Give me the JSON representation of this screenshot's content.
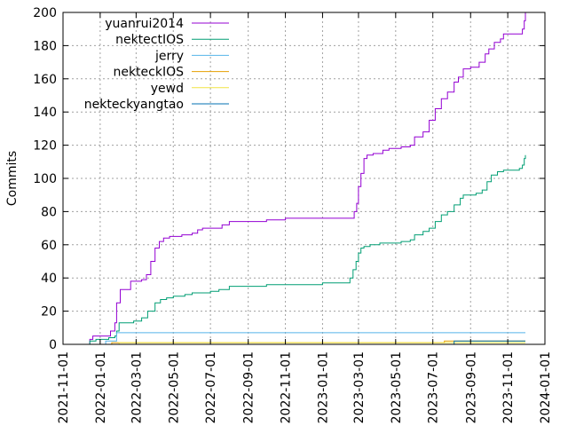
{
  "chart_data": {
    "type": "line",
    "title": "",
    "xlabel": "",
    "ylabel": "Commits",
    "ylim": [
      0,
      200
    ],
    "xlim": [
      "2021-11-01",
      "2024-01-01"
    ],
    "y_ticks": [
      "0",
      "20",
      "40",
      "60",
      "80",
      "100",
      "120",
      "140",
      "160",
      "180",
      "200"
    ],
    "x_ticks": [
      "2021-11-01",
      "2022-01-01",
      "2022-03-01",
      "2022-05-01",
      "2022-07-01",
      "2022-09-01",
      "2022-11-01",
      "2023-01-01",
      "2023-03-01",
      "2023-05-01",
      "2023-07-01",
      "2023-09-01",
      "2023-11-01",
      "2024-01-01"
    ],
    "grid": true,
    "legend_position": "top-left",
    "series": [
      {
        "name": "yuanrui2014",
        "color": "#9400d3",
        "points": [
          [
            "2021-12-10",
            0
          ],
          [
            "2021-12-15",
            3
          ],
          [
            "2021-12-20",
            5
          ],
          [
            "2022-01-10",
            5
          ],
          [
            "2022-01-18",
            8
          ],
          [
            "2022-01-25",
            13
          ],
          [
            "2022-01-28",
            25
          ],
          [
            "2022-02-03",
            33
          ],
          [
            "2022-02-20",
            38
          ],
          [
            "2022-03-10",
            39
          ],
          [
            "2022-03-18",
            42
          ],
          [
            "2022-03-25",
            50
          ],
          [
            "2022-04-01",
            58
          ],
          [
            "2022-04-08",
            62
          ],
          [
            "2022-04-15",
            64
          ],
          [
            "2022-04-25",
            65
          ],
          [
            "2022-05-15",
            66
          ],
          [
            "2022-06-01",
            67
          ],
          [
            "2022-06-10",
            69
          ],
          [
            "2022-06-18",
            70
          ],
          [
            "2022-07-01",
            70
          ],
          [
            "2022-07-20",
            72
          ],
          [
            "2022-08-01",
            74
          ],
          [
            "2022-10-01",
            75
          ],
          [
            "2022-11-01",
            76
          ],
          [
            "2023-02-18",
            76
          ],
          [
            "2023-02-22",
            80
          ],
          [
            "2023-02-26",
            85
          ],
          [
            "2023-03-01",
            95
          ],
          [
            "2023-03-05",
            103
          ],
          [
            "2023-03-10",
            112
          ],
          [
            "2023-03-15",
            114
          ],
          [
            "2023-03-25",
            115
          ],
          [
            "2023-04-10",
            117
          ],
          [
            "2023-04-20",
            118
          ],
          [
            "2023-05-10",
            119
          ],
          [
            "2023-05-25",
            120
          ],
          [
            "2023-06-01",
            125
          ],
          [
            "2023-06-15",
            128
          ],
          [
            "2023-06-25",
            135
          ],
          [
            "2023-07-05",
            142
          ],
          [
            "2023-07-15",
            148
          ],
          [
            "2023-07-25",
            152
          ],
          [
            "2023-08-05",
            158
          ],
          [
            "2023-08-12",
            161
          ],
          [
            "2023-08-20",
            166
          ],
          [
            "2023-09-01",
            167
          ],
          [
            "2023-09-15",
            170
          ],
          [
            "2023-09-25",
            175
          ],
          [
            "2023-10-01",
            178
          ],
          [
            "2023-10-10",
            182
          ],
          [
            "2023-10-20",
            184
          ],
          [
            "2023-10-25",
            187
          ],
          [
            "2023-11-20",
            187
          ],
          [
            "2023-11-25",
            190
          ],
          [
            "2023-11-28",
            195
          ],
          [
            "2023-11-30",
            200
          ]
        ]
      },
      {
        "name": "nektectIOS",
        "color": "#009e73",
        "points": [
          [
            "2021-12-10",
            0
          ],
          [
            "2021-12-15",
            2
          ],
          [
            "2021-12-25",
            3
          ],
          [
            "2022-01-15",
            4
          ],
          [
            "2022-01-25",
            5
          ],
          [
            "2022-01-28",
            8
          ],
          [
            "2022-02-01",
            13
          ],
          [
            "2022-02-25",
            14
          ],
          [
            "2022-03-10",
            16
          ],
          [
            "2022-03-20",
            20
          ],
          [
            "2022-04-01",
            25
          ],
          [
            "2022-04-10",
            27
          ],
          [
            "2022-04-20",
            28
          ],
          [
            "2022-05-01",
            29
          ],
          [
            "2022-05-20",
            30
          ],
          [
            "2022-06-01",
            31
          ],
          [
            "2022-07-01",
            32
          ],
          [
            "2022-07-15",
            33
          ],
          [
            "2022-08-01",
            35
          ],
          [
            "2022-09-01",
            35
          ],
          [
            "2022-10-01",
            36
          ],
          [
            "2022-12-01",
            36
          ],
          [
            "2023-01-01",
            37
          ],
          [
            "2023-02-10",
            37
          ],
          [
            "2023-02-15",
            40
          ],
          [
            "2023-02-20",
            45
          ],
          [
            "2023-02-25",
            50
          ],
          [
            "2023-03-01",
            55
          ],
          [
            "2023-03-05",
            58
          ],
          [
            "2023-03-10",
            59
          ],
          [
            "2023-03-20",
            60
          ],
          [
            "2023-04-05",
            61
          ],
          [
            "2023-05-10",
            62
          ],
          [
            "2023-05-25",
            63
          ],
          [
            "2023-06-01",
            66
          ],
          [
            "2023-06-15",
            68
          ],
          [
            "2023-06-25",
            70
          ],
          [
            "2023-07-05",
            74
          ],
          [
            "2023-07-15",
            78
          ],
          [
            "2023-07-25",
            80
          ],
          [
            "2023-08-05",
            84
          ],
          [
            "2023-08-15",
            88
          ],
          [
            "2023-08-20",
            90
          ],
          [
            "2023-09-10",
            91
          ],
          [
            "2023-09-20",
            93
          ],
          [
            "2023-09-28",
            98
          ],
          [
            "2023-10-05",
            102
          ],
          [
            "2023-10-15",
            104
          ],
          [
            "2023-10-25",
            105
          ],
          [
            "2023-11-20",
            106
          ],
          [
            "2023-11-25",
            108
          ],
          [
            "2023-11-28",
            112
          ],
          [
            "2023-11-30",
            114
          ]
        ]
      },
      {
        "name": "jerry",
        "color": "#56b4e9",
        "points": [
          [
            "2021-12-10",
            0
          ],
          [
            "2022-01-10",
            2
          ],
          [
            "2022-01-28",
            7
          ],
          [
            "2023-11-30",
            7
          ]
        ]
      },
      {
        "name": "nekteckIOS",
        "color": "#e69f00",
        "points": [
          [
            "2021-12-10",
            0
          ],
          [
            "2022-01-20",
            1
          ],
          [
            "2023-07-15",
            1
          ],
          [
            "2023-07-20",
            2
          ],
          [
            "2023-11-30",
            2
          ]
        ]
      },
      {
        "name": "yewd",
        "color": "#f0e442",
        "points": [
          [
            "2021-12-10",
            0
          ],
          [
            "2022-02-01",
            1
          ],
          [
            "2023-11-30",
            1
          ]
        ]
      },
      {
        "name": "nekteckyangtao",
        "color": "#0072b2",
        "points": [
          [
            "2023-08-01",
            0
          ],
          [
            "2023-08-05",
            2
          ],
          [
            "2023-11-30",
            2
          ]
        ]
      }
    ]
  }
}
